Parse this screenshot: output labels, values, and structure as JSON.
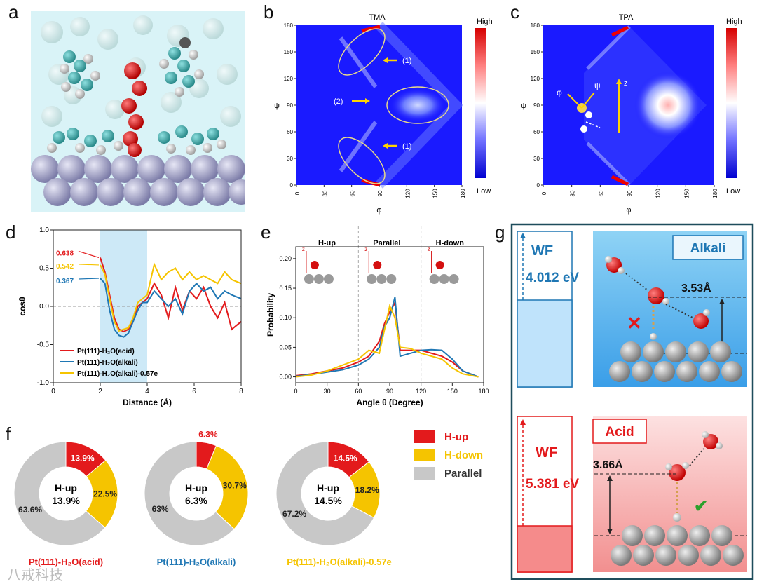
{
  "panel_labels": {
    "a": "a",
    "b": "b",
    "c": "c",
    "d": "d",
    "e": "e",
    "f": "f",
    "g": "g"
  },
  "colorbar": {
    "high": "High",
    "low": "Low"
  },
  "colors": {
    "red": "#e31a1c",
    "blue": "#1f77b4",
    "yellow": "#f5c400",
    "gray": "#c8c8c8",
    "map_bg": "#1a1aff"
  },
  "panel_b": {
    "title": "TMA",
    "xlabel": "φ",
    "ylabel": "ψ",
    "xticks": [
      "0",
      "30",
      "60",
      "90",
      "120",
      "150",
      "180"
    ],
    "yticks": [
      "0",
      "30",
      "60",
      "90",
      "120",
      "150",
      "180"
    ],
    "ann1_top": "(1)",
    "ann2": "(2)",
    "ann1_bottom": "(1)"
  },
  "panel_c": {
    "title": "TPA",
    "xlabel": "φ",
    "ylabel": "ψ",
    "xticks": [
      "0",
      "30",
      "60",
      "90",
      "120",
      "150",
      "180"
    ],
    "yticks": [
      "0",
      "30",
      "60",
      "90",
      "120",
      "150",
      "180"
    ],
    "phi": "φ",
    "psi": "ψ",
    "z": "z"
  },
  "chart_data": [
    {
      "type": "line",
      "panel": "d",
      "xlabel": "Distance (Å)",
      "ylabel": "cosθ",
      "xlim": [
        0,
        8
      ],
      "ylim": [
        -1.0,
        1.0
      ],
      "xticks": [
        "0",
        "2",
        "4",
        "6",
        "8"
      ],
      "yticks": [
        "-1.0",
        "-0.5",
        "0.0",
        "0.5",
        "1.0"
      ],
      "highlight_range": [
        2,
        4
      ],
      "start_labels": [
        "0.638",
        "0.542",
        "0.367"
      ],
      "series": [
        {
          "name": "Pt(111)-H₂O(acid)",
          "color": "#e31a1c",
          "x": [
            2.0,
            2.2,
            2.4,
            2.6,
            2.8,
            3.0,
            3.2,
            3.4,
            3.6,
            3.8,
            4.0,
            4.3,
            4.6,
            4.9,
            5.2,
            5.5,
            5.8,
            6.1,
            6.4,
            6.7,
            7.0,
            7.3,
            7.6,
            8.0
          ],
          "y": [
            0.638,
            0.45,
            0.15,
            -0.15,
            -0.3,
            -0.33,
            -0.3,
            -0.2,
            0.0,
            0.05,
            0.1,
            0.3,
            0.15,
            -0.15,
            0.25,
            -0.05,
            0.2,
            0.1,
            0.25,
            0.0,
            -0.15,
            0.05,
            -0.3,
            -0.2
          ]
        },
        {
          "name": "Pt(111)-H₂O(alkali)",
          "color": "#1f77b4",
          "x": [
            2.0,
            2.2,
            2.4,
            2.6,
            2.8,
            3.0,
            3.2,
            3.4,
            3.6,
            3.8,
            4.0,
            4.3,
            4.6,
            4.9,
            5.2,
            5.5,
            5.8,
            6.1,
            6.4,
            6.7,
            7.0,
            7.3,
            7.6,
            8.0
          ],
          "y": [
            0.367,
            0.3,
            -0.05,
            -0.3,
            -0.38,
            -0.4,
            -0.35,
            -0.2,
            -0.05,
            0.05,
            0.05,
            0.2,
            0.1,
            0.0,
            0.1,
            -0.1,
            0.2,
            0.3,
            0.2,
            0.25,
            0.1,
            0.2,
            0.15,
            0.1
          ]
        },
        {
          "name": "Pt(111)-H₂O(alkali)-0.57e",
          "color": "#f5c400",
          "x": [
            2.0,
            2.2,
            2.4,
            2.6,
            2.8,
            3.0,
            3.2,
            3.4,
            3.6,
            3.8,
            4.0,
            4.3,
            4.6,
            4.9,
            5.2,
            5.5,
            5.8,
            6.1,
            6.4,
            6.7,
            7.0,
            7.3,
            7.6,
            8.0
          ],
          "y": [
            0.542,
            0.42,
            0.1,
            -0.2,
            -0.32,
            -0.3,
            -0.28,
            -0.15,
            0.05,
            0.1,
            0.15,
            0.55,
            0.35,
            0.45,
            0.5,
            0.35,
            0.45,
            0.35,
            0.4,
            0.35,
            0.3,
            0.45,
            0.35,
            0.3
          ]
        }
      ]
    },
    {
      "type": "line",
      "panel": "e",
      "xlabel": "Angle θ (Degree)",
      "ylabel": "Probability",
      "xlim": [
        0,
        180
      ],
      "ylim": [
        -0.01,
        0.22
      ],
      "xticks": [
        "0",
        "30",
        "60",
        "90",
        "120",
        "150",
        "180"
      ],
      "yticks": [
        "0.00",
        "0.05",
        "0.10",
        "0.15",
        "0.20"
      ],
      "region_labels": [
        "H-up",
        "Parallel",
        "H-down"
      ],
      "series": [
        {
          "name": "acid",
          "color": "#e31a1c",
          "x": [
            0,
            15,
            30,
            45,
            60,
            70,
            80,
            85,
            90,
            95,
            100,
            110,
            120,
            130,
            140,
            150,
            160,
            175
          ],
          "y": [
            0.002,
            0.005,
            0.01,
            0.015,
            0.025,
            0.035,
            0.06,
            0.09,
            0.11,
            0.125,
            0.045,
            0.045,
            0.045,
            0.04,
            0.035,
            0.025,
            0.01,
            0.0
          ]
        },
        {
          "name": "alkali",
          "color": "#1f77b4",
          "x": [
            0,
            15,
            30,
            45,
            60,
            70,
            80,
            85,
            90,
            95,
            100,
            110,
            120,
            130,
            140,
            150,
            160,
            175
          ],
          "y": [
            0.001,
            0.004,
            0.008,
            0.012,
            0.02,
            0.03,
            0.05,
            0.085,
            0.1,
            0.135,
            0.035,
            0.04,
            0.045,
            0.046,
            0.045,
            0.03,
            0.01,
            0.0
          ]
        },
        {
          "name": "alkali-0.57e",
          "color": "#f5c400",
          "x": [
            0,
            15,
            30,
            45,
            60,
            70,
            80,
            85,
            90,
            95,
            100,
            110,
            120,
            130,
            140,
            150,
            160,
            175
          ],
          "y": [
            0.0,
            0.003,
            0.01,
            0.02,
            0.03,
            0.045,
            0.04,
            0.08,
            0.12,
            0.1,
            0.05,
            0.048,
            0.04,
            0.035,
            0.03,
            0.015,
            0.005,
            0.0
          ]
        }
      ]
    },
    {
      "type": "pie",
      "panel": "f",
      "categories": [
        "H-up",
        "H-down",
        "Parallel"
      ],
      "colors": [
        "#e31a1c",
        "#f5c400",
        "#c8c8c8"
      ],
      "donuts": [
        {
          "label": "Pt(111)-H₂O(acid)",
          "label_color": "#e31a1c",
          "values": [
            13.9,
            22.5,
            63.6
          ],
          "labels": [
            "13.9%",
            "22.5%",
            "63.6%"
          ],
          "center_title": "H-up",
          "center_value": "13.9%"
        },
        {
          "label": "Pt(111)-H₂O(alkali)",
          "label_color": "#1f77b4",
          "values": [
            6.3,
            30.7,
            63.0
          ],
          "labels": [
            "6.3%",
            "30.7%",
            "63%"
          ],
          "center_title": "H-up",
          "center_value": "6.3%"
        },
        {
          "label": "Pt(111)-H₂O(alkali)-0.57e",
          "label_color": "#f5c400",
          "values": [
            14.5,
            18.2,
            67.2
          ],
          "labels": [
            "14.5%",
            "18.2%",
            "67.2%"
          ],
          "center_title": "H-up",
          "center_value": "14.5%"
        }
      ]
    }
  ],
  "panel_g": {
    "wf_label": "WF",
    "alkali_wf": "4.012 eV",
    "acid_wf": "5.381 eV",
    "alkali": "Alkali",
    "acid": "Acid",
    "alkali_dist": "3.53Å",
    "acid_dist": "3.66Å",
    "cross": "✕",
    "check": "✔"
  },
  "watermark": "八戒科技"
}
